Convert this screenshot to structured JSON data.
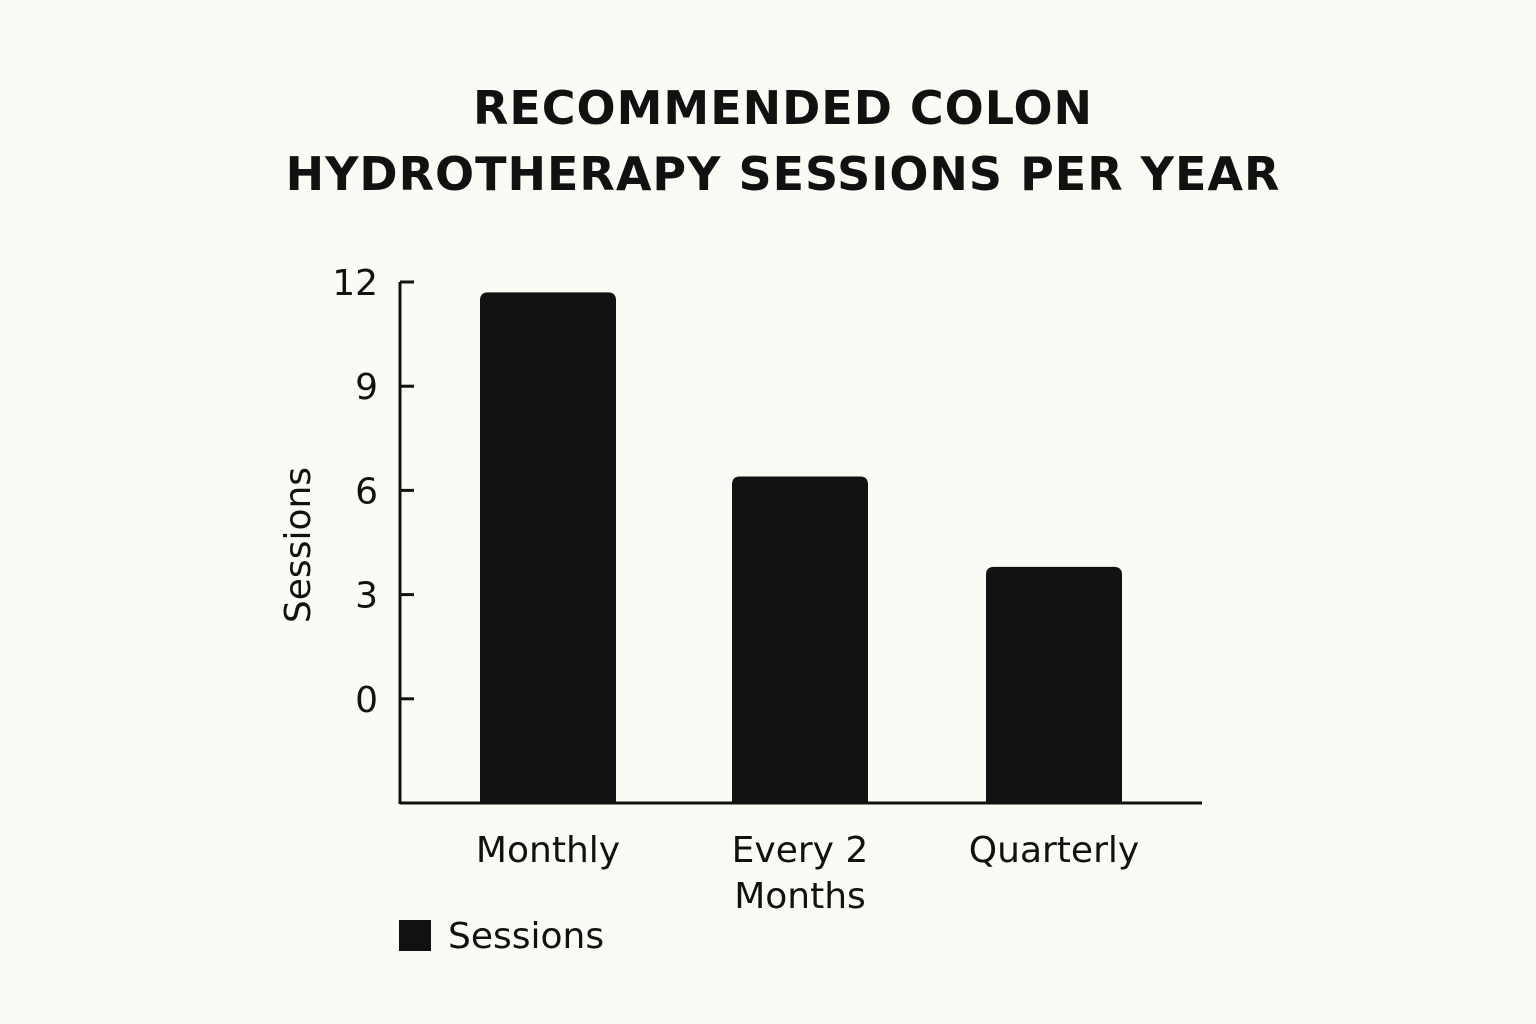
{
  "chart_data": {
    "type": "bar",
    "title_lines": [
      "RECOMMENDED COLON",
      "HYDROTHERAPY SESSIONS PER YEAR"
    ],
    "categories": [
      [
        "Monthly"
      ],
      [
        "Every 2",
        "Months"
      ],
      [
        "Quarterly"
      ]
    ],
    "series": [
      {
        "name": "Sessions",
        "values": [
          11.7,
          6.4,
          3.8
        ],
        "color": "#111111"
      }
    ],
    "ylabel": "Sessions",
    "xlabel": "",
    "y_ticks": [
      "0",
      "3",
      "6",
      "9",
      "12"
    ],
    "ylim": [
      -3,
      12
    ],
    "grid": false,
    "legend_position": "bottom-left"
  }
}
